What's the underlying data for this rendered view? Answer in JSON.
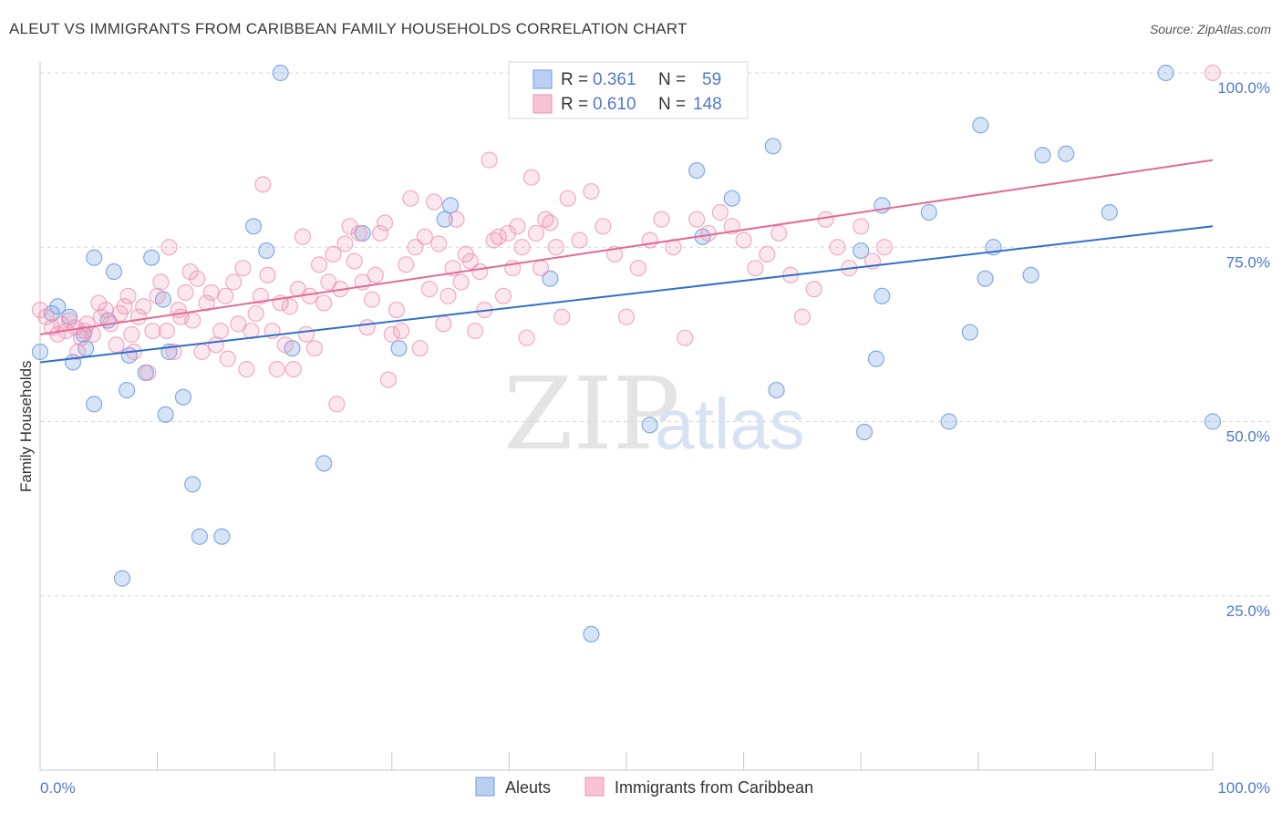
{
  "title": "ALEUT VS IMMIGRANTS FROM CARIBBEAN FAMILY HOUSEHOLDS CORRELATION CHART",
  "source": "Source: ZipAtlas.com",
  "watermark": {
    "zip": "ZIP",
    "atlas": "atlas"
  },
  "legend": {
    "r_label": "R =",
    "n_label": "N =",
    "rows": [
      {
        "r": "0.361",
        "n": "59"
      },
      {
        "r": "0.610",
        "n": "148"
      }
    ]
  },
  "chart_data": {
    "type": "scatter",
    "ylabel": "Family Households",
    "xlim": [
      0,
      100
    ],
    "ylim": [
      0,
      100
    ],
    "x_tick_labels": [
      "0.0%",
      "100.0%"
    ],
    "y_ticks": [
      {
        "v": 25,
        "label": "25.0%"
      },
      {
        "v": 50,
        "label": "50.0%"
      },
      {
        "v": 75,
        "label": "75.0%"
      },
      {
        "v": 100,
        "label": "100.0%"
      }
    ],
    "grid": true,
    "legend_position": "top-center",
    "colors": {
      "aleuts": "#6f9de0",
      "caribbean": "#ef92b3",
      "aleuts_line": "#2f6fcc",
      "caribbean_line": "#e36a96"
    },
    "series": [
      {
        "name": "Aleuts",
        "trend": [
          [
            0,
            58.5
          ],
          [
            100,
            78.0
          ]
        ],
        "points": [
          [
            0,
            60
          ],
          [
            1,
            65.5
          ],
          [
            1.5,
            66.5
          ],
          [
            2.5,
            65
          ],
          [
            2.8,
            58.5
          ],
          [
            3.7,
            62.5
          ],
          [
            3.9,
            60.5
          ],
          [
            4.6,
            52.5
          ],
          [
            4.6,
            73.5
          ],
          [
            5.8,
            64.5
          ],
          [
            6.3,
            71.5
          ],
          [
            7,
            27.5
          ],
          [
            7.4,
            54.5
          ],
          [
            7.6,
            59.5
          ],
          [
            9,
            57
          ],
          [
            9.5,
            73.5
          ],
          [
            10.5,
            67.5
          ],
          [
            10.7,
            51
          ],
          [
            11,
            60
          ],
          [
            12.2,
            53.5
          ],
          [
            13,
            41
          ],
          [
            13.6,
            33.5
          ],
          [
            15.5,
            33.5
          ],
          [
            18.2,
            78
          ],
          [
            19.3,
            74.5
          ],
          [
            20.5,
            100
          ],
          [
            21.5,
            60.5
          ],
          [
            24.2,
            44
          ],
          [
            27.5,
            77
          ],
          [
            30.6,
            60.5
          ],
          [
            34.5,
            79
          ],
          [
            35,
            81
          ],
          [
            43.5,
            70.5
          ],
          [
            47,
            19.5
          ],
          [
            52,
            49.5
          ],
          [
            56,
            86
          ],
          [
            56.5,
            76.5
          ],
          [
            59,
            82
          ],
          [
            62.5,
            89.5
          ],
          [
            62.8,
            54.5
          ],
          [
            70,
            74.5
          ],
          [
            70.3,
            48.5
          ],
          [
            71.3,
            59
          ],
          [
            71.8,
            68
          ],
          [
            71.8,
            81
          ],
          [
            75.8,
            80
          ],
          [
            77.5,
            50
          ],
          [
            79.3,
            62.8
          ],
          [
            80.2,
            92.5
          ],
          [
            80.6,
            70.5
          ],
          [
            81.3,
            75
          ],
          [
            84.5,
            71
          ],
          [
            85.5,
            88.2
          ],
          [
            87.5,
            88.4
          ],
          [
            91.2,
            80
          ],
          [
            96,
            100
          ],
          [
            100,
            50
          ]
        ]
      },
      {
        "name": "Immigrants from Caribbean",
        "trend": [
          [
            0,
            62.5
          ],
          [
            100,
            87.5
          ]
        ],
        "points": [
          [
            0,
            66
          ],
          [
            0.5,
            65
          ],
          [
            1,
            63.5
          ],
          [
            1.5,
            62.5
          ],
          [
            1.8,
            64
          ],
          [
            2.2,
            63
          ],
          [
            2.5,
            64.5
          ],
          [
            3,
            63.5
          ],
          [
            3.2,
            60
          ],
          [
            3.5,
            62
          ],
          [
            3.8,
            63
          ],
          [
            4,
            64
          ],
          [
            4.5,
            62.5
          ],
          [
            5,
            67
          ],
          [
            5.2,
            65
          ],
          [
            5.6,
            66
          ],
          [
            6,
            64
          ],
          [
            6.5,
            61
          ],
          [
            6.8,
            65.5
          ],
          [
            7.2,
            66.5
          ],
          [
            7.5,
            68
          ],
          [
            7.8,
            62.5
          ],
          [
            8,
            60
          ],
          [
            8.4,
            65
          ],
          [
            8.8,
            66.5
          ],
          [
            9.2,
            57
          ],
          [
            9.6,
            63
          ],
          [
            10,
            68
          ],
          [
            10.3,
            70
          ],
          [
            10.8,
            63
          ],
          [
            11,
            75
          ],
          [
            11.4,
            60
          ],
          [
            11.8,
            66
          ],
          [
            12,
            65
          ],
          [
            12.4,
            68.5
          ],
          [
            12.8,
            71.5
          ],
          [
            13,
            64.5
          ],
          [
            13.4,
            70.5
          ],
          [
            13.8,
            60
          ],
          [
            14.2,
            67
          ],
          [
            14.6,
            68.5
          ],
          [
            15,
            61
          ],
          [
            15.4,
            63
          ],
          [
            15.8,
            68
          ],
          [
            16,
            59
          ],
          [
            16.5,
            70
          ],
          [
            16.9,
            64
          ],
          [
            17.3,
            72
          ],
          [
            17.6,
            57.5
          ],
          [
            18,
            63
          ],
          [
            18.4,
            65.5
          ],
          [
            18.8,
            68
          ],
          [
            19,
            84
          ],
          [
            19.4,
            71
          ],
          [
            19.8,
            63
          ],
          [
            20.2,
            57.5
          ],
          [
            20.5,
            67
          ],
          [
            20.9,
            61
          ],
          [
            21.3,
            66.5
          ],
          [
            21.6,
            57.5
          ],
          [
            22,
            69
          ],
          [
            22.4,
            76.5
          ],
          [
            22.7,
            62.5
          ],
          [
            23,
            68
          ],
          [
            23.4,
            60.5
          ],
          [
            23.8,
            72.5
          ],
          [
            24.2,
            67
          ],
          [
            24.6,
            70
          ],
          [
            25,
            74
          ],
          [
            25.3,
            52.5
          ],
          [
            25.6,
            69
          ],
          [
            26,
            75.5
          ],
          [
            26.4,
            78
          ],
          [
            26.8,
            73
          ],
          [
            27.2,
            77
          ],
          [
            27.5,
            70
          ],
          [
            27.9,
            63.5
          ],
          [
            28.3,
            67.5
          ],
          [
            28.6,
            71
          ],
          [
            29,
            77
          ],
          [
            29.4,
            78.5
          ],
          [
            29.7,
            56
          ],
          [
            30,
            62.5
          ],
          [
            30.4,
            66
          ],
          [
            30.8,
            63
          ],
          [
            31.2,
            72.5
          ],
          [
            31.6,
            82
          ],
          [
            32,
            75
          ],
          [
            32.4,
            60.5
          ],
          [
            32.8,
            76.5
          ],
          [
            33.2,
            69
          ],
          [
            33.6,
            81.5
          ],
          [
            34,
            75.5
          ],
          [
            34.4,
            64
          ],
          [
            34.8,
            68
          ],
          [
            35.2,
            72
          ],
          [
            35.5,
            79
          ],
          [
            35.9,
            70
          ],
          [
            36.3,
            74
          ],
          [
            36.7,
            73
          ],
          [
            37.1,
            63
          ],
          [
            37.5,
            71.5
          ],
          [
            37.9,
            66
          ],
          [
            38.3,
            87.5
          ],
          [
            38.7,
            76
          ],
          [
            39.1,
            76.5
          ],
          [
            39.5,
            68
          ],
          [
            39.9,
            77
          ],
          [
            40.3,
            72
          ],
          [
            40.7,
            78
          ],
          [
            41.1,
            75
          ],
          [
            41.5,
            62
          ],
          [
            41.9,
            85
          ],
          [
            42.3,
            77
          ],
          [
            42.7,
            72
          ],
          [
            43.1,
            79
          ],
          [
            43.5,
            78.5
          ],
          [
            44,
            75
          ],
          [
            44.5,
            65
          ],
          [
            45,
            82
          ],
          [
            46,
            76
          ],
          [
            47,
            83
          ],
          [
            48,
            78
          ],
          [
            49,
            74
          ],
          [
            50,
            65
          ],
          [
            51,
            72
          ],
          [
            52,
            76
          ],
          [
            53,
            79
          ],
          [
            54,
            75
          ],
          [
            55,
            62
          ],
          [
            56,
            79
          ],
          [
            57,
            77
          ],
          [
            58,
            80
          ],
          [
            59,
            78
          ],
          [
            60,
            76
          ],
          [
            61,
            72
          ],
          [
            62,
            74
          ],
          [
            63,
            77
          ],
          [
            64,
            71
          ],
          [
            65,
            65
          ],
          [
            66,
            69
          ],
          [
            67,
            79
          ],
          [
            68,
            75
          ],
          [
            69,
            72
          ],
          [
            70,
            78
          ],
          [
            71,
            73
          ],
          [
            72,
            75
          ],
          [
            100,
            100
          ]
        ]
      }
    ]
  },
  "bottom_legend": [
    "Aleuts",
    "Immigrants from Caribbean"
  ]
}
